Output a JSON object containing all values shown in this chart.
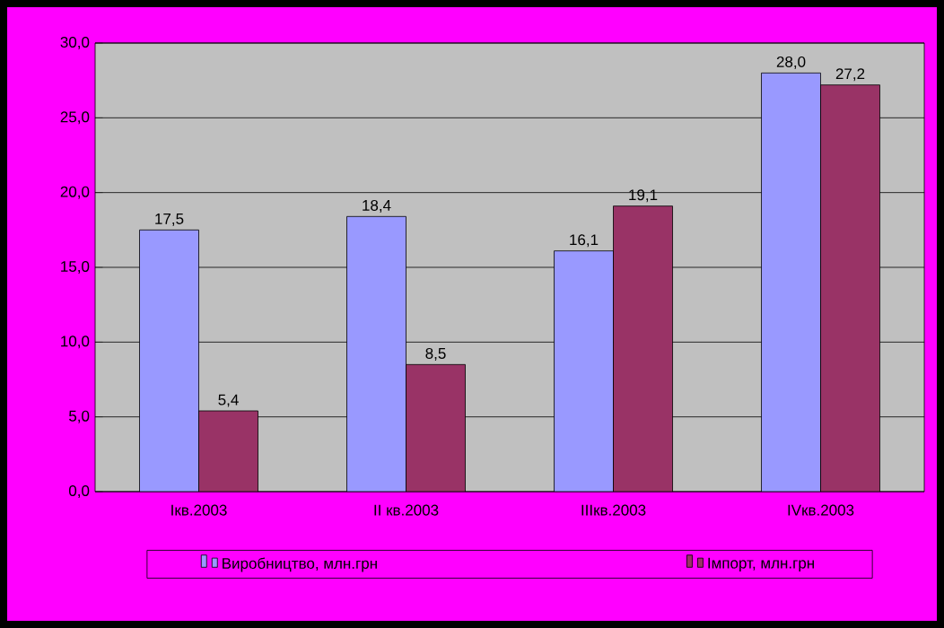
{
  "chart_data": {
    "type": "bar",
    "categories": [
      "Ікв.2003",
      "ІІ кв.2003",
      "ІІІкв.2003",
      "ІVкв.2003"
    ],
    "series": [
      {
        "name": "Виробництво, млн.грн",
        "color": "#9999ff",
        "values": [
          17.5,
          18.4,
          16.1,
          28.0
        ],
        "value_labels": [
          "17,5",
          "18,4",
          "16,1",
          "28,0"
        ]
      },
      {
        "name": "Імпорт, млн.грн",
        "color": "#993366",
        "values": [
          5.4,
          8.5,
          19.1,
          27.2
        ],
        "value_labels": [
          "5,4",
          "8,5",
          "19,1",
          "27,2"
        ]
      }
    ],
    "ylim": [
      0,
      30
    ],
    "yticks": [
      {
        "value": 0,
        "label": "0,0"
      },
      {
        "value": 5,
        "label": "5,0"
      },
      {
        "value": 10,
        "label": "10,0"
      },
      {
        "value": 15,
        "label": "15,0"
      },
      {
        "value": 20,
        "label": "20,0"
      },
      {
        "value": 25,
        "label": "25,0"
      },
      {
        "value": 30,
        "label": "30,0"
      }
    ],
    "grid": "y",
    "legend": "bottom"
  }
}
